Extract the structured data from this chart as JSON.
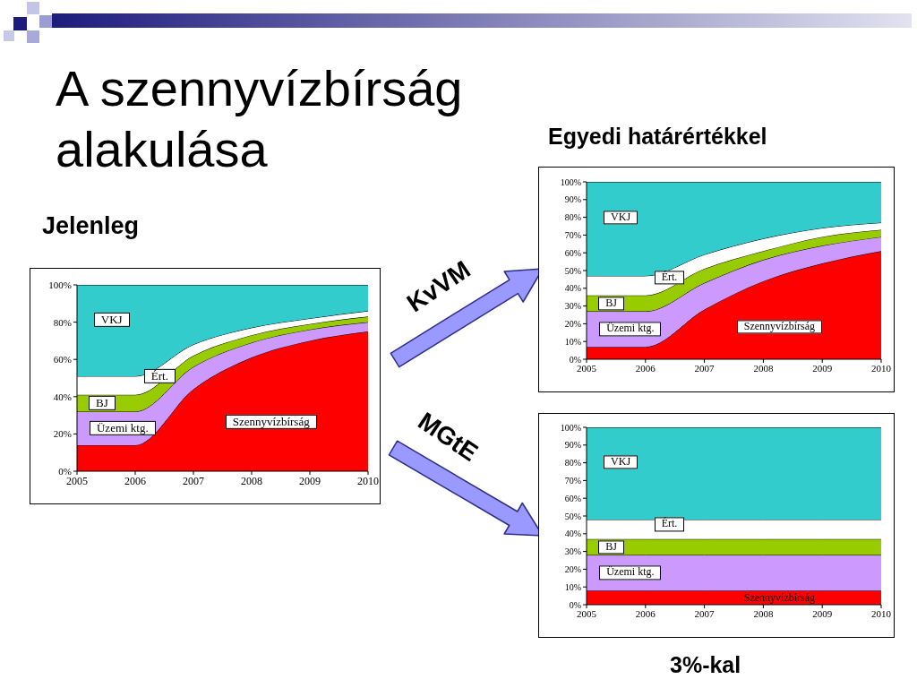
{
  "chart_data": [
    {
      "type": "area",
      "title": "A szennyvízbírság alakulása",
      "subtitle": "Jelenleg",
      "stacked": true,
      "x": [
        2005,
        2006,
        2007,
        2008,
        2009,
        2010
      ],
      "xlim": [
        2005,
        2010
      ],
      "xticks": [
        2005,
        2006,
        2007,
        2008,
        2009,
        2010
      ],
      "ylim": [
        0,
        100
      ],
      "yticks": [
        {
          "value": 0,
          "label": "0%"
        },
        {
          "value": 20,
          "label": "20%"
        },
        {
          "value": 40,
          "label": "40%"
        },
        {
          "value": 60,
          "label": "60%"
        },
        {
          "value": 80,
          "label": "80%"
        },
        {
          "value": 100,
          "label": "100%"
        }
      ],
      "series": [
        {
          "name": "Szennyvízbírság",
          "color": "#ff0000",
          "values": [
            14,
            14,
            44,
            61,
            70,
            75
          ]
        },
        {
          "name": "Üzemi ktg.",
          "color": "#cc99ff",
          "values": [
            18,
            18,
            12,
            8,
            6,
            5
          ]
        },
        {
          "name": "BJ",
          "color": "#99cc00",
          "values": [
            9,
            9,
            6,
            4,
            3,
            3
          ]
        },
        {
          "name": "Ért.",
          "color": "#ffffff",
          "values": [
            10,
            10,
            6,
            4,
            3,
            3
          ]
        },
        {
          "name": "VKJ",
          "color": "#33cccc",
          "values": [
            49,
            49,
            32,
            23,
            18,
            14
          ]
        }
      ]
    },
    {
      "type": "area",
      "title": "Egyedi határértékkel",
      "annotations": [
        "KvVM"
      ],
      "stacked": true,
      "x": [
        2005,
        2006,
        2007,
        2008,
        2009,
        2010
      ],
      "xlim": [
        2005,
        2010
      ],
      "xticks": [
        2005,
        2006,
        2007,
        2008,
        2009,
        2010
      ],
      "ylim": [
        0,
        100
      ],
      "yticks": [
        {
          "value": 0,
          "label": "0%"
        },
        {
          "value": 10,
          "label": "10%"
        },
        {
          "value": 20,
          "label": "20%"
        },
        {
          "value": 30,
          "label": "30%"
        },
        {
          "value": 40,
          "label": "40%"
        },
        {
          "value": 50,
          "label": "50%"
        },
        {
          "value": 60,
          "label": "60%"
        },
        {
          "value": 70,
          "label": "70%"
        },
        {
          "value": 80,
          "label": "80%"
        },
        {
          "value": 90,
          "label": "90%"
        },
        {
          "value": 100,
          "label": "100%"
        }
      ],
      "series": [
        {
          "name": "Szennyvízbírság",
          "color": "#ff0000",
          "values": [
            7,
            7,
            28,
            44,
            54,
            61
          ]
        },
        {
          "name": "Üzemi ktg.",
          "color": "#cc99ff",
          "values": [
            20,
            20,
            15,
            12,
            10,
            8
          ]
        },
        {
          "name": "BJ",
          "color": "#99cc00",
          "values": [
            9,
            9,
            8,
            5,
            5,
            4
          ]
        },
        {
          "name": "Ért.",
          "color": "#ffffff",
          "values": [
            11,
            11,
            8,
            7,
            5,
            4
          ]
        },
        {
          "name": "VKJ",
          "color": "#33cccc",
          "values": [
            53,
            53,
            41,
            32,
            26,
            23
          ]
        }
      ]
    },
    {
      "type": "area",
      "title": "3%-kal",
      "annotations": [
        "MGtE"
      ],
      "stacked": true,
      "x": [
        2005,
        2006,
        2007,
        2008,
        2009,
        2010
      ],
      "xlim": [
        2005,
        2010
      ],
      "xticks": [
        2005,
        2006,
        2007,
        2008,
        2009,
        2010
      ],
      "ylim": [
        0,
        100
      ],
      "yticks": [
        {
          "value": 0,
          "label": "0%"
        },
        {
          "value": 10,
          "label": "10%"
        },
        {
          "value": 20,
          "label": "20%"
        },
        {
          "value": 30,
          "label": "30%"
        },
        {
          "value": 40,
          "label": "40%"
        },
        {
          "value": 50,
          "label": "50%"
        },
        {
          "value": 60,
          "label": "60%"
        },
        {
          "value": 70,
          "label": "70%"
        },
        {
          "value": 80,
          "label": "80%"
        },
        {
          "value": 90,
          "label": "90%"
        },
        {
          "value": 100,
          "label": "100%"
        }
      ],
      "series": [
        {
          "name": "Szennyvízbírság",
          "color": "#ff0000",
          "values": [
            8,
            8,
            8,
            8,
            8,
            8
          ]
        },
        {
          "name": "Üzemi ktg.",
          "color": "#cc99ff",
          "values": [
            20,
            20,
            20,
            20,
            20,
            20
          ]
        },
        {
          "name": "BJ",
          "color": "#99cc00",
          "values": [
            9,
            9,
            9,
            9,
            9,
            9
          ]
        },
        {
          "name": "Ért.",
          "color": "#ffffff",
          "values": [
            11,
            11,
            11,
            11,
            11,
            11
          ]
        },
        {
          "name": "VKJ",
          "color": "#33cccc",
          "values": [
            52,
            52,
            52,
            52,
            52,
            52
          ]
        }
      ]
    }
  ]
}
